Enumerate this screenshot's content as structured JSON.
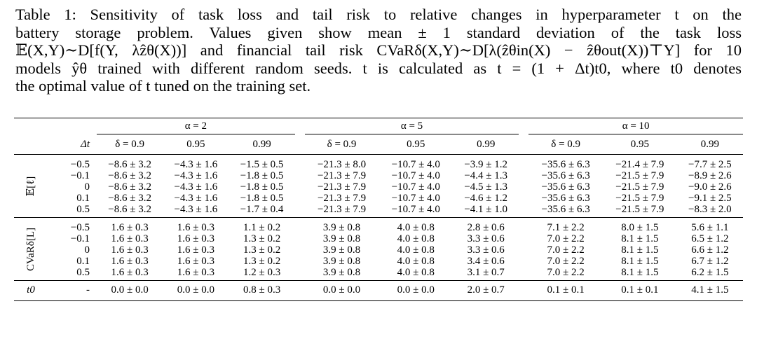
{
  "caption": {
    "lines": [
      "Table 1: Sensitivity of task loss and tail risk to relative changes in hyperparameter t on the",
      "battery storage problem.  Values given show mean ± 1 standard deviation of the task loss",
      "𝔼(X,Y)∼D[f(Y, λẑθ(X))] and financial tail risk CVaRδ(X,Y)∼D[λ(ẑθin(X) − ẑθout(X))⊤Y] for 10",
      "models ŷθ trained with different random seeds. t is calculated as t = (1 + Δt)t0, where t0 denotes",
      "the optimal value of t tuned on the training set."
    ]
  },
  "table": {
    "alpha_headers": [
      "α = 2",
      "α = 5",
      "α = 10"
    ],
    "delta_header": "Δt",
    "delta_headers": [
      "δ = 0.9",
      "0.95",
      "0.99",
      "δ = 0.9",
      "0.95",
      "0.99",
      "δ = 0.9",
      "0.95",
      "0.99"
    ],
    "groups": [
      {
        "label": "𝔼[ℓ]",
        "rows": [
          {
            "dt": "−0.5",
            "cells": [
              "−8.6 ± 3.2",
              "−4.3 ± 1.6",
              "−1.5 ± 0.5",
              "−21.3 ± 8.0",
              "−10.7 ± 4.0",
              "−3.9 ± 1.2",
              "−35.6 ± 6.3",
              "−21.4 ± 7.9",
              "−7.7 ± 2.5"
            ]
          },
          {
            "dt": "−0.1",
            "cells": [
              "−8.6 ± 3.2",
              "−4.3 ± 1.6",
              "−1.8 ± 0.5",
              "−21.3 ± 7.9",
              "−10.7 ± 4.0",
              "−4.4 ± 1.3",
              "−35.6 ± 6.3",
              "−21.5 ± 7.9",
              "−8.9 ± 2.6"
            ]
          },
          {
            "dt": "0",
            "cells": [
              "−8.6 ± 3.2",
              "−4.3 ± 1.6",
              "−1.8 ± 0.5",
              "−21.3 ± 7.9",
              "−10.7 ± 4.0",
              "−4.5 ± 1.3",
              "−35.6 ± 6.3",
              "−21.5 ± 7.9",
              "−9.0 ± 2.6"
            ]
          },
          {
            "dt": "0.1",
            "cells": [
              "−8.6 ± 3.2",
              "−4.3 ± 1.6",
              "−1.8 ± 0.5",
              "−21.3 ± 7.9",
              "−10.7 ± 4.0",
              "−4.6 ± 1.2",
              "−35.6 ± 6.3",
              "−21.5 ± 7.9",
              "−9.1 ± 2.5"
            ]
          },
          {
            "dt": "0.5",
            "cells": [
              "−8.6 ± 3.2",
              "−4.3 ± 1.6",
              "−1.7 ± 0.4",
              "−21.3 ± 7.9",
              "−10.7 ± 4.0",
              "−4.1 ± 1.0",
              "−35.6 ± 6.3",
              "−21.5 ± 7.9",
              "−8.3 ± 2.0"
            ]
          }
        ]
      },
      {
        "label": "CVaRδ[L]",
        "rows": [
          {
            "dt": "−0.5",
            "cells": [
              "1.6 ± 0.3",
              "1.6 ± 0.3",
              "1.1 ± 0.2",
              "3.9 ± 0.8",
              "4.0 ± 0.8",
              "2.8 ± 0.6",
              "7.1 ± 2.2",
              "8.0 ± 1.5",
              "5.6 ± 1.1"
            ]
          },
          {
            "dt": "−0.1",
            "cells": [
              "1.6 ± 0.3",
              "1.6 ± 0.3",
              "1.3 ± 0.2",
              "3.9 ± 0.8",
              "4.0 ± 0.8",
              "3.3 ± 0.6",
              "7.0 ± 2.2",
              "8.1 ± 1.5",
              "6.5 ± 1.2"
            ]
          },
          {
            "dt": "0",
            "cells": [
              "1.6 ± 0.3",
              "1.6 ± 0.3",
              "1.3 ± 0.2",
              "3.9 ± 0.8",
              "4.0 ± 0.8",
              "3.3 ± 0.6",
              "7.0 ± 2.2",
              "8.1 ± 1.5",
              "6.6 ± 1.2"
            ]
          },
          {
            "dt": "0.1",
            "cells": [
              "1.6 ± 0.3",
              "1.6 ± 0.3",
              "1.3 ± 0.2",
              "3.9 ± 0.8",
              "4.0 ± 0.8",
              "3.4 ± 0.6",
              "7.0 ± 2.2",
              "8.1 ± 1.5",
              "6.7 ± 1.2"
            ]
          },
          {
            "dt": "0.5",
            "cells": [
              "1.6 ± 0.3",
              "1.6 ± 0.3",
              "1.2 ± 0.3",
              "3.9 ± 0.8",
              "4.0 ± 0.8",
              "3.1 ± 0.7",
              "7.0 ± 2.2",
              "8.1 ± 1.5",
              "6.2 ± 1.5"
            ]
          }
        ]
      }
    ],
    "t0_row": {
      "label": "t0",
      "dt": "-",
      "cells": [
        "0.0 ± 0.0",
        "0.0 ± 0.0",
        "0.8 ± 0.3",
        "0.0 ± 0.0",
        "0.0 ± 0.0",
        "2.0 ± 0.7",
        "0.1 ± 0.1",
        "0.1 ± 0.1",
        "4.1 ± 1.5"
      ]
    }
  }
}
